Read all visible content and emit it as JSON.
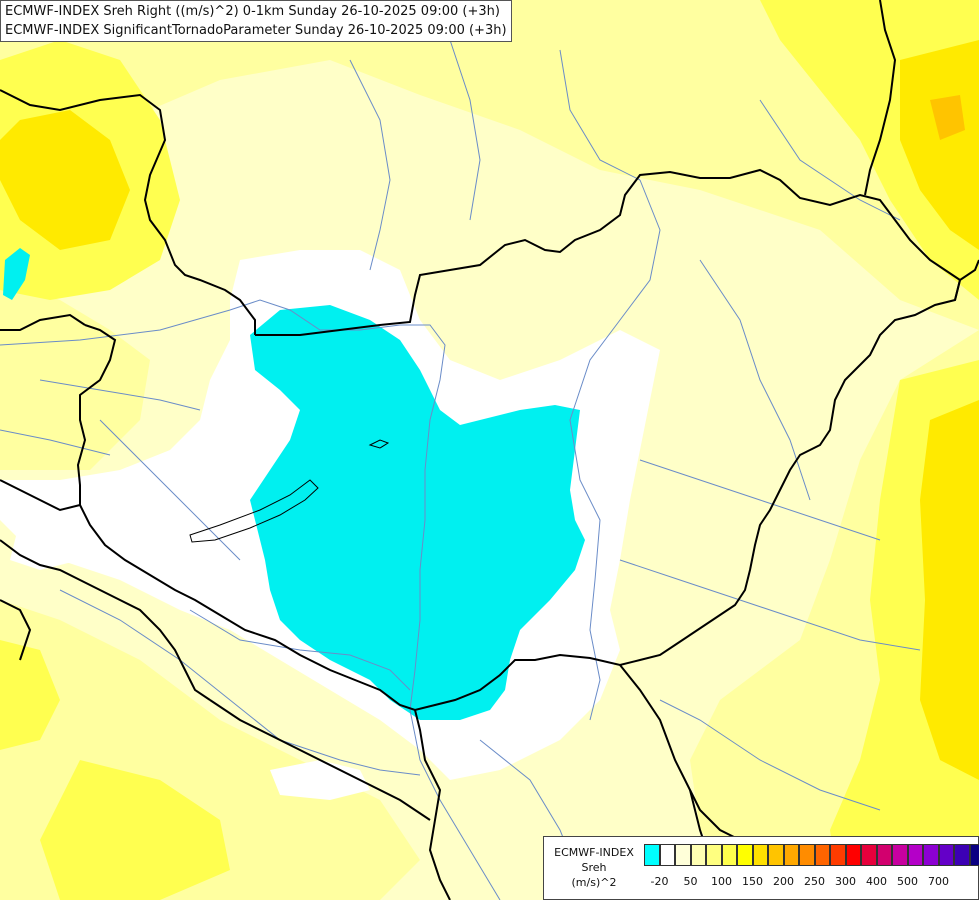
{
  "title": {
    "line1": "ECMWF-INDEX Sreh Right ((m/s)^2) 0-1km Sunday 26-10-2025 09:00 (+3h)",
    "line2": "ECMWF-INDEX SignificantTornadoParameter Sunday 26-10-2025 09:00 (+3h)"
  },
  "legend": {
    "line1": "ECMWF-INDEX",
    "line2": "Sreh",
    "line3": "(m/s)^2",
    "colors": [
      "#00ffff",
      "#ffffff",
      "#ffffd9",
      "#ffffb3",
      "#ffff80",
      "#ffff4d",
      "#ffff00",
      "#ffe000",
      "#ffc400",
      "#ffa800",
      "#ff8c00",
      "#ff6400",
      "#ff3c00",
      "#ff0000",
      "#e6003c",
      "#d2006e",
      "#c800a0",
      "#b400c8",
      "#8c00d2",
      "#6400c8",
      "#3c00b4",
      "#0a0082"
    ],
    "ticks": [
      "-20",
      "50",
      "100",
      "150",
      "200",
      "250",
      "300",
      "400",
      "500",
      "700"
    ]
  },
  "map_colors": {
    "base": "#ffffc8",
    "light": "#ffffa0",
    "mid": "#ffff50",
    "strong": "#ffea00",
    "orange": "#ffc400",
    "white": "#ffffff",
    "cyan": "#00f0f0",
    "border": "#000000",
    "river": "#6a8cc8"
  }
}
